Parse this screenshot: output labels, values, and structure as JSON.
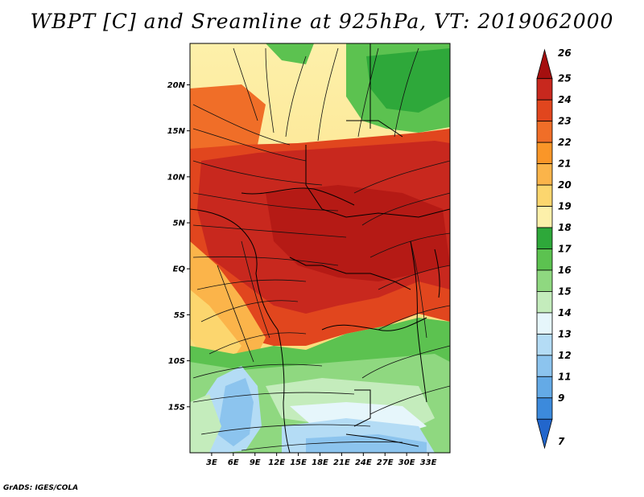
{
  "title": "WBPT [C] and Sreamline at 925hPa, VT: 2019062000",
  "footer": "GrADS: IGES/COLA",
  "map": {
    "lon_range": [
      0,
      36
    ],
    "lat_range": [
      -20,
      24.5
    ],
    "lat_ticks": [
      "20N",
      "15N",
      "10N",
      "5N",
      "EQ",
      "5S",
      "10S",
      "15S"
    ],
    "lon_ticks": [
      "3E",
      "6E",
      "9E",
      "12E",
      "15E",
      "18E",
      "21E",
      "24E",
      "27E",
      "30E",
      "33E"
    ]
  },
  "colorbar": {
    "labels": [
      "26",
      "25",
      "24",
      "23",
      "22",
      "21",
      "20",
      "19",
      "18",
      "17",
      "16",
      "15",
      "14",
      "13",
      "12",
      "11",
      "9",
      "7"
    ],
    "colors": [
      "#a50f0f",
      "#c8281e",
      "#e1461e",
      "#f06e28",
      "#fa9628",
      "#fbb44a",
      "#fcd66e",
      "#fdf0aa",
      "#2ea83a",
      "#5cc250",
      "#8fd880",
      "#c4ecbc",
      "#e6f6fb",
      "#b4dcf5",
      "#8cc4ee",
      "#64aae6",
      "#3c8adc",
      "#2266cc"
    ]
  }
}
